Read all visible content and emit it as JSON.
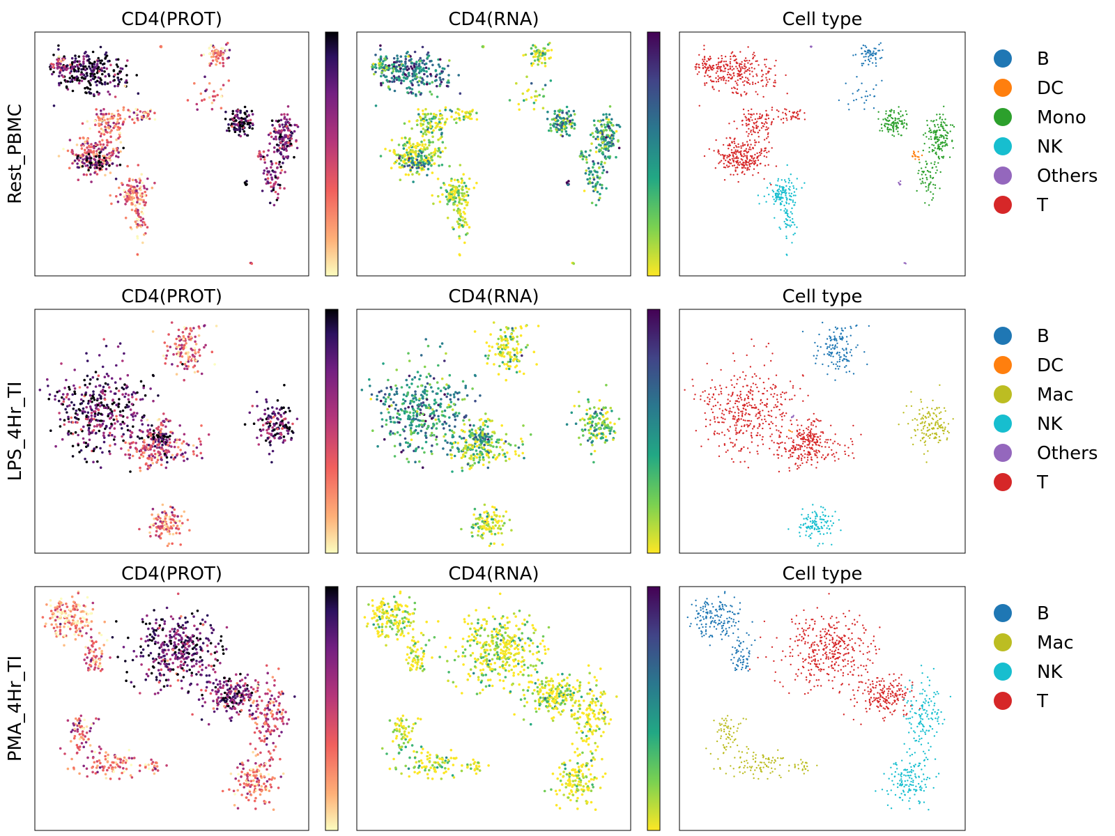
{
  "chart_data": [
    {
      "type": "scatter",
      "row_label": "Rest_PBMC",
      "panels": [
        {
          "title": "CD4(PROT)",
          "kind": "continuous",
          "colormap": "magma_r",
          "colorbar": true
        },
        {
          "title": "CD4(RNA)",
          "kind": "continuous",
          "colormap": "viridis_r",
          "colorbar": true
        },
        {
          "title": "Cell type",
          "kind": "categorical",
          "colorbar": false
        }
      ],
      "legend": [
        {
          "name": "B",
          "color": "#1f77b4"
        },
        {
          "name": "DC",
          "color": "#ff7f0e"
        },
        {
          "name": "Mono",
          "color": "#2ca02c"
        },
        {
          "name": "NK",
          "color": "#17becf"
        },
        {
          "name": "Others",
          "color": "#9467bd"
        },
        {
          "name": "T",
          "color": "#d62728"
        }
      ],
      "clusters": [
        {
          "type": "T",
          "cx": 0.2,
          "cy": 0.83,
          "rx": 0.12,
          "ry": 0.08,
          "n": 260,
          "prot": 0.95,
          "rna": 0.65
        },
        {
          "type": "T",
          "cx": 0.09,
          "cy": 0.86,
          "rx": 0.04,
          "ry": 0.04,
          "n": 40,
          "prot": 0.5,
          "rna": 0.4
        },
        {
          "type": "T",
          "cx": 0.27,
          "cy": 0.63,
          "rx": 0.06,
          "ry": 0.06,
          "n": 100,
          "prot": 0.3,
          "rna": 0.15
        },
        {
          "type": "T",
          "cx": 0.4,
          "cy": 0.66,
          "rx": 0.04,
          "ry": 0.025,
          "n": 35,
          "prot": 0.3,
          "rna": 0.1
        },
        {
          "type": "T",
          "cx": 0.22,
          "cy": 0.5,
          "rx": 0.09,
          "ry": 0.08,
          "n": 190,
          "prot": 0.4,
          "rna": 0.1
        },
        {
          "type": "T",
          "cx": 0.22,
          "cy": 0.47,
          "rx": 0.05,
          "ry": 0.03,
          "n": 50,
          "prot": 0.95,
          "rna": 0.6
        },
        {
          "type": "NK",
          "cx": 0.36,
          "cy": 0.34,
          "rx": 0.05,
          "ry": 0.07,
          "n": 120,
          "prot": 0.3,
          "rna": 0.1
        },
        {
          "type": "NK",
          "cx": 0.38,
          "cy": 0.22,
          "rx": 0.025,
          "ry": 0.06,
          "n": 40,
          "prot": 0.3,
          "rna": 0.1
        },
        {
          "type": "B",
          "cx": 0.67,
          "cy": 0.91,
          "rx": 0.04,
          "ry": 0.04,
          "n": 60,
          "prot": 0.35,
          "rna": 0.2
        },
        {
          "type": "B",
          "cx": 0.64,
          "cy": 0.74,
          "rx": 0.05,
          "ry": 0.06,
          "n": 25,
          "prot": 0.35,
          "rna": 0.2
        },
        {
          "type": "Mono",
          "cx": 0.75,
          "cy": 0.63,
          "rx": 0.04,
          "ry": 0.05,
          "n": 110,
          "prot": 0.9,
          "rna": 0.45
        },
        {
          "type": "Mono",
          "cx": 0.91,
          "cy": 0.57,
          "rx": 0.04,
          "ry": 0.08,
          "n": 140,
          "prot": 0.75,
          "rna": 0.45
        },
        {
          "type": "Mono",
          "cx": 0.87,
          "cy": 0.4,
          "rx": 0.04,
          "ry": 0.08,
          "n": 60,
          "prot": 0.75,
          "rna": 0.45
        },
        {
          "type": "DC",
          "cx": 0.83,
          "cy": 0.5,
          "rx": 0.02,
          "ry": 0.02,
          "n": 15,
          "prot": 0.5,
          "rna": 0.3
        },
        {
          "type": "Others",
          "cx": 0.46,
          "cy": 0.94,
          "rx": 0.004,
          "ry": 0.004,
          "n": 5,
          "prot": 0.5,
          "rna": 0.2
        },
        {
          "type": "Others",
          "cx": 0.77,
          "cy": 0.38,
          "rx": 0.005,
          "ry": 0.01,
          "n": 5,
          "prot": 0.95,
          "rna": 0.9
        },
        {
          "type": "Others",
          "cx": 0.79,
          "cy": 0.05,
          "rx": 0.004,
          "ry": 0.004,
          "n": 3,
          "prot": 0.4,
          "rna": 0.2
        }
      ]
    },
    {
      "type": "scatter",
      "row_label": "LPS_4Hr_TI",
      "panels": [
        {
          "title": "CD4(PROT)",
          "kind": "continuous",
          "colormap": "magma_r",
          "colorbar": true
        },
        {
          "title": "CD4(RNA)",
          "kind": "continuous",
          "colormap": "viridis_r",
          "colorbar": true
        },
        {
          "title": "Cell type",
          "kind": "categorical",
          "colorbar": false
        }
      ],
      "legend": [
        {
          "name": "B",
          "color": "#1f77b4"
        },
        {
          "name": "DC",
          "color": "#ff7f0e"
        },
        {
          "name": "Mac",
          "color": "#bcbd22"
        },
        {
          "name": "NK",
          "color": "#17becf"
        },
        {
          "name": "Others",
          "color": "#9467bd"
        },
        {
          "name": "T",
          "color": "#d62728"
        }
      ],
      "clusters": [
        {
          "type": "B",
          "cx": 0.55,
          "cy": 0.84,
          "rx": 0.07,
          "ry": 0.09,
          "n": 130,
          "prot": 0.35,
          "rna": 0.1
        },
        {
          "type": "T",
          "cx": 0.24,
          "cy": 0.58,
          "rx": 0.15,
          "ry": 0.17,
          "n": 380,
          "prot": 0.8,
          "rna": 0.55
        },
        {
          "type": "T",
          "cx": 0.45,
          "cy": 0.43,
          "rx": 0.12,
          "ry": 0.07,
          "n": 200,
          "prot": 0.5,
          "rna": 0.25
        },
        {
          "type": "T",
          "cx": 0.46,
          "cy": 0.47,
          "rx": 0.04,
          "ry": 0.03,
          "n": 40,
          "prot": 0.95,
          "rna": 0.6
        },
        {
          "type": "T",
          "cx": 0.46,
          "cy": 0.53,
          "rx": 0.04,
          "ry": 0.04,
          "n": 20,
          "prot": 0.4,
          "rna": 0.2
        },
        {
          "type": "NK",
          "cx": 0.48,
          "cy": 0.12,
          "rx": 0.06,
          "ry": 0.06,
          "n": 110,
          "prot": 0.3,
          "rna": 0.1
        },
        {
          "type": "Mac",
          "cx": 0.88,
          "cy": 0.53,
          "rx": 0.07,
          "ry": 0.08,
          "n": 140,
          "prot": 0.8,
          "rna": 0.3
        },
        {
          "type": "Others",
          "cx": 0.4,
          "cy": 0.56,
          "rx": 0.01,
          "ry": 0.01,
          "n": 4,
          "prot": 0.95,
          "rna": 0.8
        },
        {
          "type": "DC",
          "cx": 0.39,
          "cy": 0.5,
          "rx": 0.01,
          "ry": 0.01,
          "n": 3,
          "prot": 0.4,
          "rna": 0.2
        }
      ]
    },
    {
      "type": "scatter",
      "row_label": "PMA_4Hr_TI",
      "panels": [
        {
          "title": "CD4(PROT)",
          "kind": "continuous",
          "colormap": "magma_r",
          "colorbar": true
        },
        {
          "title": "CD4(RNA)",
          "kind": "continuous",
          "colormap": "viridis_r",
          "colorbar": true
        },
        {
          "title": "Cell type",
          "kind": "categorical",
          "colorbar": false
        }
      ],
      "legend": [
        {
          "name": "B",
          "color": "#1f77b4"
        },
        {
          "name": "Mac",
          "color": "#bcbd22"
        },
        {
          "name": "NK",
          "color": "#17becf"
        },
        {
          "name": "T",
          "color": "#d62728"
        }
      ],
      "clusters": [
        {
          "type": "B",
          "cx": 0.12,
          "cy": 0.87,
          "rx": 0.08,
          "ry": 0.07,
          "n": 160,
          "prot": 0.15,
          "rna": 0.05
        },
        {
          "type": "B",
          "cx": 0.22,
          "cy": 0.72,
          "rx": 0.04,
          "ry": 0.07,
          "n": 60,
          "prot": 0.3,
          "rna": 0.05
        },
        {
          "type": "T",
          "cx": 0.52,
          "cy": 0.74,
          "rx": 0.15,
          "ry": 0.15,
          "n": 380,
          "prot": 0.8,
          "rna": 0.1
        },
        {
          "type": "T",
          "cx": 0.72,
          "cy": 0.55,
          "rx": 0.09,
          "ry": 0.08,
          "n": 180,
          "prot": 0.7,
          "rna": 0.1
        },
        {
          "type": "NK",
          "cx": 0.85,
          "cy": 0.47,
          "rx": 0.06,
          "ry": 0.12,
          "n": 130,
          "prot": 0.4,
          "rna": 0.05
        },
        {
          "type": "NK",
          "cx": 0.8,
          "cy": 0.2,
          "rx": 0.07,
          "ry": 0.1,
          "n": 140,
          "prot": 0.3,
          "rna": 0.05
        },
        {
          "type": "Mac",
          "cx": 0.17,
          "cy": 0.4,
          "rx": 0.05,
          "ry": 0.07,
          "n": 60,
          "prot": 0.4,
          "rna": 0.1
        },
        {
          "type": "Mac",
          "cx": 0.27,
          "cy": 0.27,
          "rx": 0.09,
          "ry": 0.05,
          "n": 90,
          "prot": 0.35,
          "rna": 0.1
        },
        {
          "type": "Mac",
          "cx": 0.43,
          "cy": 0.26,
          "rx": 0.03,
          "ry": 0.03,
          "n": 20,
          "prot": 0.3,
          "rna": 0.1
        }
      ]
    }
  ]
}
